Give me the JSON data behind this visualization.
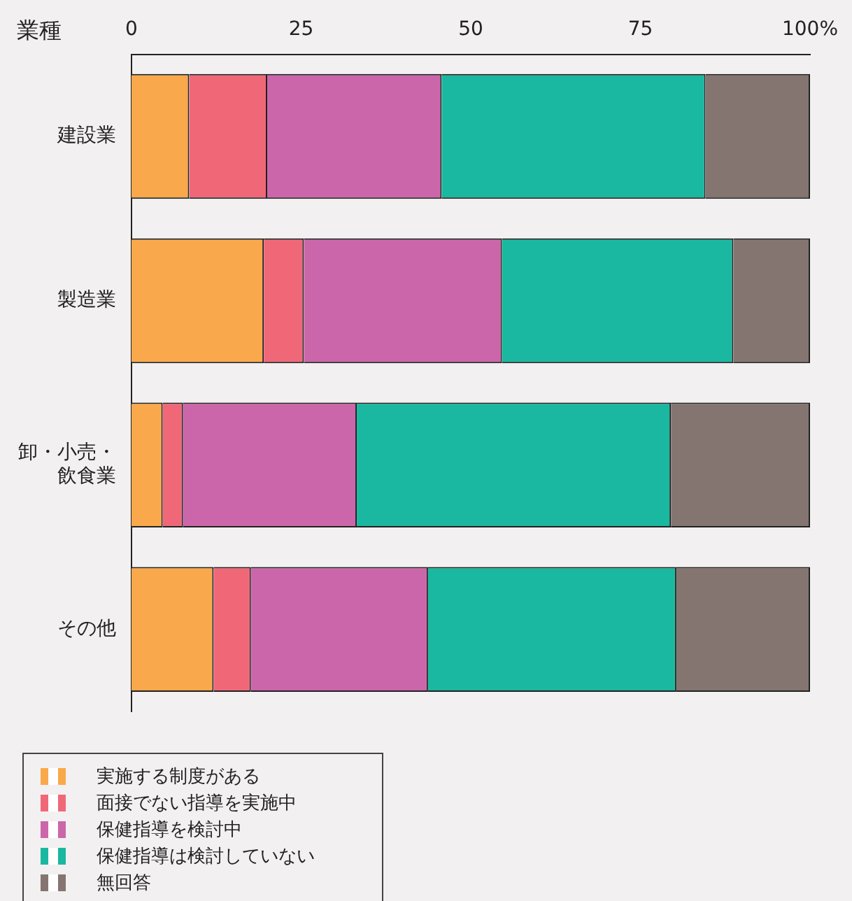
{
  "chart_data": {
    "type": "bar",
    "orientation": "horizontal",
    "stacked": true,
    "ylabel": "業種",
    "categories": [
      "建設業",
      "製造業",
      "卸・小売・飲食業",
      "その他"
    ],
    "series": [
      {
        "name": "実施する制度がある",
        "color": "#f9a94b",
        "values": [
          8.5,
          19.5,
          4.6,
          12.1
        ]
      },
      {
        "name": "面接でない指導を実施中",
        "color": "#f06878",
        "values": [
          11.5,
          5.9,
          3.0,
          5.5
        ]
      },
      {
        "name": "保健指導を検討中",
        "color": "#cc66aa",
        "values": [
          25.7,
          29.2,
          25.6,
          26.1
        ]
      },
      {
        "name": "保健指導は検討していない",
        "color": "#1ab8a0",
        "values": [
          38.9,
          34.1,
          46.3,
          36.6
        ]
      },
      {
        "name": "無回答",
        "color": "#857570",
        "values": [
          15.4,
          11.3,
          20.5,
          19.7
        ]
      }
    ],
    "xlim": [
      0,
      100
    ],
    "xticks": [
      0,
      25,
      50,
      75,
      {
        "value": 100,
        "label": "100%"
      }
    ],
    "grid": false,
    "legend": "bottom left"
  }
}
